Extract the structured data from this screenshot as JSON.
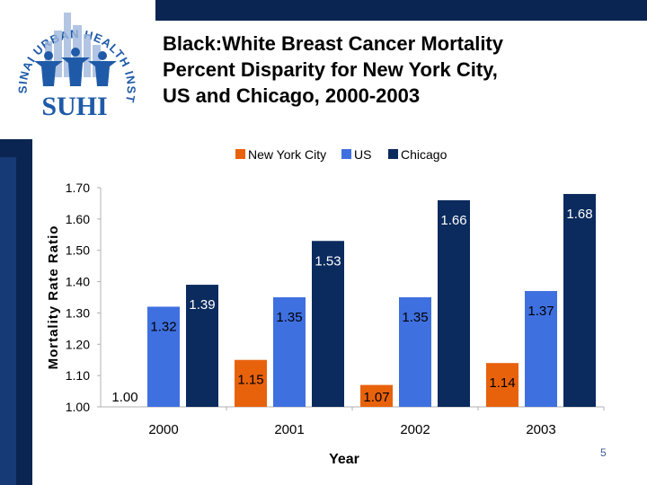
{
  "slide": {
    "title_lines": [
      "Black:White Breast Cancer Mortality",
      "Percent Disparity for New York City,",
      "US and Chicago, 2000-2003"
    ],
    "page_number": "5",
    "logo": {
      "acronym": "SUHI",
      "arc_text": "SINAI URBAN HEALTH INSTITUTE"
    },
    "colors": {
      "frame": "#0b2552",
      "logo": "#1f5aa8"
    }
  },
  "chart_data": {
    "type": "bar",
    "categories": [
      "2000",
      "2001",
      "2002",
      "2003"
    ],
    "series": [
      {
        "name": "New York City",
        "color": "#e8620c",
        "values": [
          1.0,
          1.15,
          1.07,
          1.14
        ],
        "labels": [
          "1.00",
          "1.15",
          "1.07",
          "1.14"
        ]
      },
      {
        "name": "US",
        "color": "#3f70e0",
        "values": [
          1.32,
          1.35,
          1.35,
          1.37
        ],
        "labels": [
          "1.32",
          "1.35",
          "1.35",
          "1.37"
        ]
      },
      {
        "name": "Chicago",
        "color": "#0b2b5e",
        "values": [
          1.39,
          1.53,
          1.66,
          1.68
        ],
        "labels": [
          "1.39",
          "1.53",
          "1.66",
          "1.68"
        ]
      }
    ],
    "xlabel": "Year",
    "ylabel": "Mortality Rate Ratio",
    "ylim": [
      1.0,
      1.7
    ],
    "yticks": [
      "1.00",
      "1.10",
      "1.20",
      "1.30",
      "1.40",
      "1.50",
      "1.60",
      "1.70"
    ],
    "legend_position": "top",
    "grid": false
  }
}
